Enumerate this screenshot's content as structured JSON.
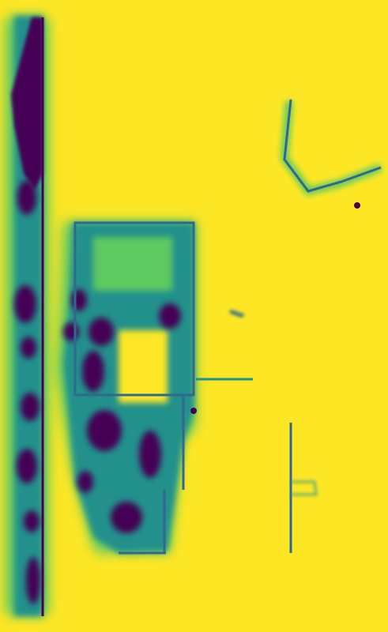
{
  "image": {
    "kind": "viridis-colormap heatmap",
    "background_color": "#fde725",
    "palette": {
      "low": "#440154",
      "mid_dark": "#31688e",
      "mid": "#21918c",
      "mid_light": "#5ec962",
      "high": "#fde725"
    },
    "regions": [
      "left-vertical-strip",
      "central-rectangular-object",
      "top-right-l-shape",
      "right-vertical-line",
      "small-center-fragment",
      "right-dot",
      "center-dot"
    ]
  }
}
